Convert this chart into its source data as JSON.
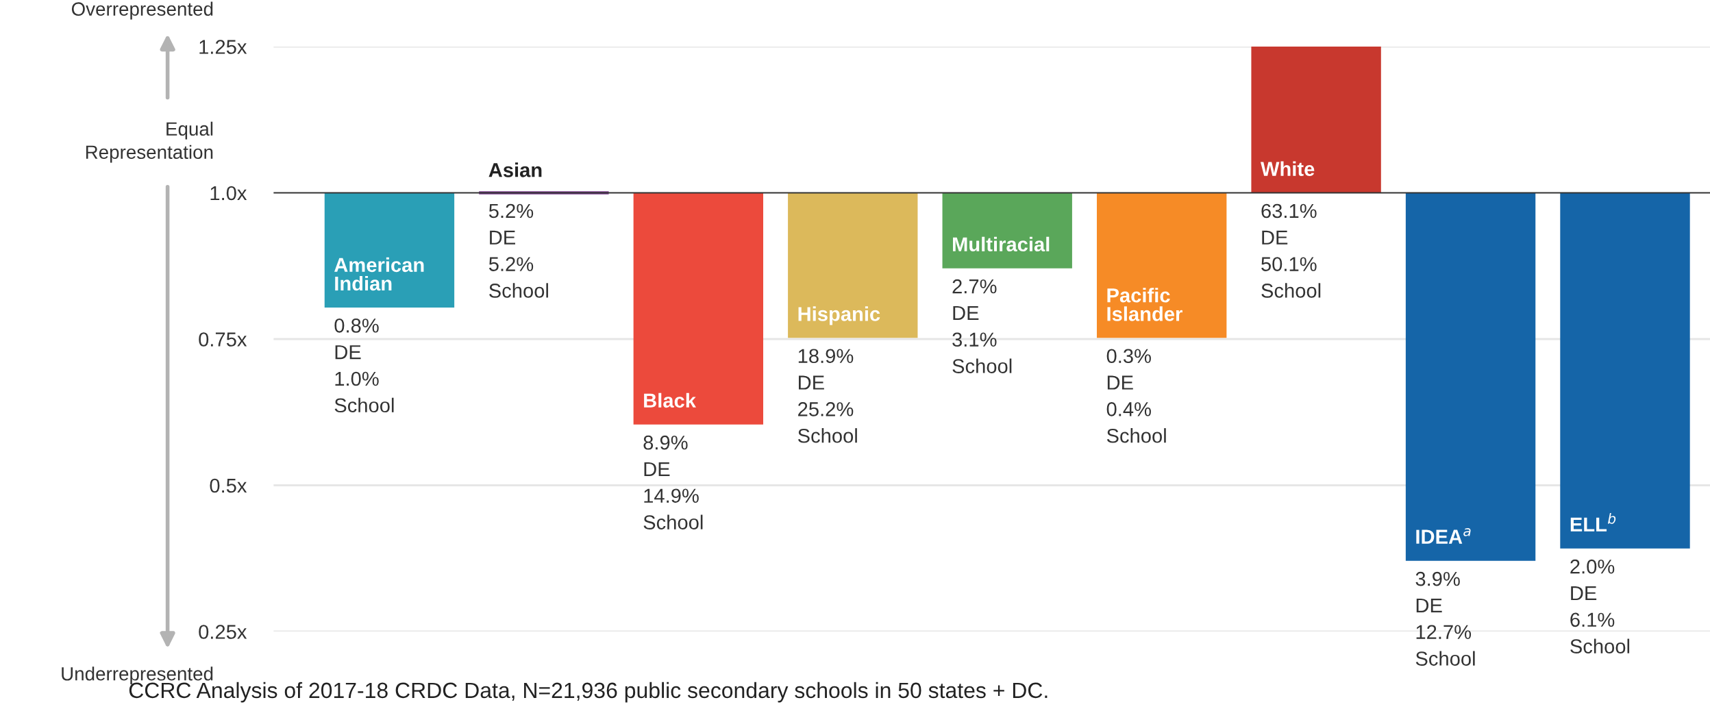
{
  "chart_data": {
    "type": "bar",
    "categories": [
      "American Indian",
      "Asian",
      "Black",
      "Hispanic",
      "Multiracial",
      "Pacific Islander",
      "White",
      "IDEA$^{a}$",
      "ELL$^{b}$"
    ],
    "base": [
      1.0,
      1.0,
      1.0,
      1.0,
      1.0,
      1.0,
      1.0,
      1.0,
      1.0
    ],
    "values": [
      -0.196,
      0.0,
      -0.396,
      -0.248,
      -0.129,
      -0.248,
      0.25,
      -0.629,
      -0.608
    ],
    "colors": [
      "#2a9fb6",
      "#7d3f8e",
      "#ec4a3c",
      "#dcb95b",
      "#5aa75a",
      "#f68b26",
      "#c8382e",
      "#1565a8",
      "#1565a8"
    ],
    "ylim": [
      0.25,
      1.25
    ],
    "yticks": [
      {
        "value": 0.25,
        "label": "0.25x"
      },
      {
        "value": 0.5,
        "label": "0.5x"
      },
      {
        "value": 0.75,
        "label": "0.75x"
      },
      {
        "value": 1.0,
        "label": "1.0x"
      },
      {
        "value": 1.25,
        "label": "1.25x"
      }
    ],
    "grid": "y",
    "ref_lines": [
      {
        "axis": "y",
        "value": 1.0,
        "color": "#333333"
      }
    ],
    "annotations": [
      "Overrepresented",
      "Equal\nRepresentation",
      "Underrepresented",
      "CCRC Analysis of 2017-18 CRDC Data, N=21,936 public secondary schools in 50 states + DC.",
      {
        "text": "0.8%\nDE\n1.0%\nSchool",
        "x": "American Indian",
        "y": 0.804
      },
      {
        "text": "5.2%\nDE\n5.2%\nSchool",
        "x": "Asian",
        "y": 1.0
      },
      {
        "text": "8.9%\nDE\n14.9%\nSchool",
        "x": "Black",
        "y": 0.604
      },
      {
        "text": "18.9%\nDE\n25.2%\nSchool",
        "x": "Hispanic",
        "y": 0.752
      },
      {
        "text": "2.7%\nDE\n3.1%\nSchool",
        "x": "Multiracial",
        "y": 0.871
      },
      {
        "text": "0.3%\nDE\n0.4%\nSchool",
        "x": "Pacific Islander",
        "y": 0.752
      },
      {
        "text": "63.1%\nDE\n50.1%\nSchool",
        "x": "White",
        "y": 1.0
      },
      {
        "text": "3.9%\nDE\n12.7%\nSchool",
        "x": "IDEA$^{a}$",
        "y": 0.371
      },
      {
        "text": "2.0%\nDE\n6.1%\nSchool",
        "x": "ELL$^{b}$",
        "y": 0.392
      }
    ]
  }
}
